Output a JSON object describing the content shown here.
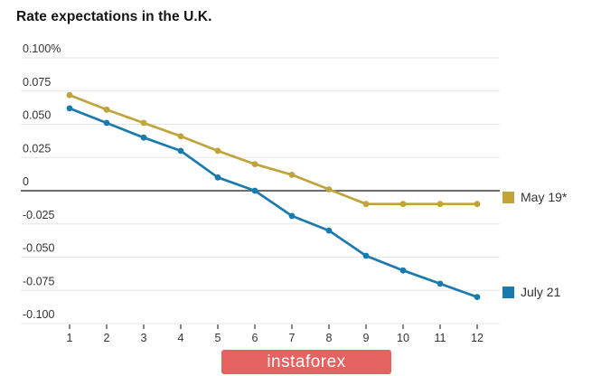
{
  "title": "Rate expectations in the U.K.",
  "watermark": "instaforex",
  "colors": {
    "may_line": "#c0a33a",
    "july_line": "#1a7aae",
    "grid": "#e5e5e5",
    "zero_line": "#58585b",
    "tick_text": "#333333",
    "title_text": "#141414",
    "watermark_bg": "#e4625f",
    "watermark_text": "#ffffff"
  },
  "chart_data": {
    "type": "line",
    "title": "Rate expectations in the U.K.",
    "x": [
      1,
      2,
      3,
      4,
      5,
      6,
      7,
      8,
      9,
      10,
      11,
      12
    ],
    "xtick_labels": [
      "1",
      "2",
      "3",
      "4",
      "5",
      "6",
      "7",
      "8",
      "9",
      "10",
      "11",
      "12"
    ],
    "series": [
      {
        "name": "May 19*",
        "color": "#c0a33a",
        "values": [
          0.072,
          0.061,
          0.051,
          0.041,
          0.03,
          0.02,
          0.012,
          0.001,
          -0.01,
          -0.01,
          -0.01,
          -0.01
        ]
      },
      {
        "name": "July 21",
        "color": "#1a7aae",
        "values": [
          0.062,
          0.051,
          0.04,
          0.03,
          0.01,
          0.0,
          -0.019,
          -0.03,
          -0.049,
          -0.06,
          -0.07,
          -0.08
        ]
      }
    ],
    "ylim": [
      -0.1,
      0.1
    ],
    "yticks": [
      0.1,
      0.075,
      0.05,
      0.025,
      0,
      -0.025,
      -0.05,
      -0.075,
      -0.1
    ],
    "ytick_labels": [
      "0.100%",
      "0.075",
      "0.050",
      "0.025",
      "0",
      "-0.025",
      "-0.050",
      "-0.075",
      "-0.100"
    ],
    "grid": true,
    "legend_position": "right"
  }
}
